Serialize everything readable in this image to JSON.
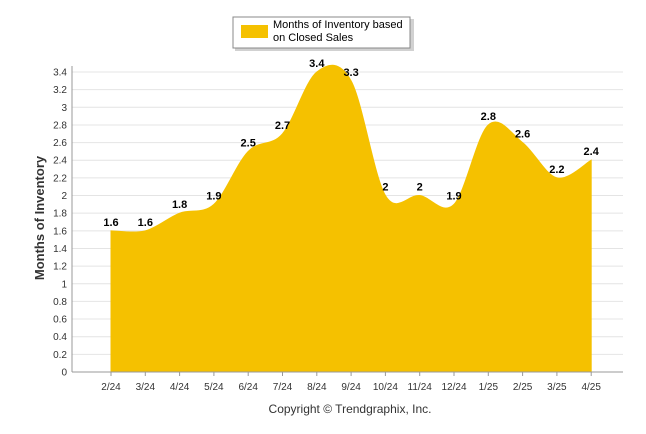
{
  "chart_data": {
    "type": "area",
    "ylabel": "Months of Inventory",
    "xlabel": "",
    "ylim": [
      0,
      3.4
    ],
    "y_ticks": [
      0,
      0.2,
      0.4,
      0.6,
      0.8,
      1,
      1.2,
      1.4,
      1.6,
      1.8,
      2,
      2.2,
      2.4,
      2.6,
      2.8,
      3,
      3.2,
      3.4
    ],
    "categories": [
      "2/24",
      "3/24",
      "4/24",
      "5/24",
      "6/24",
      "7/24",
      "8/24",
      "9/24",
      "10/24",
      "11/24",
      "12/24",
      "1/25",
      "2/25",
      "3/25",
      "4/25"
    ],
    "series": [
      {
        "name": "Months of Inventory based on Closed Sales",
        "values": [
          1.6,
          1.6,
          1.8,
          1.9,
          2.5,
          2.7,
          3.4,
          3.3,
          2,
          2,
          1.9,
          2.8,
          2.6,
          2.2,
          2.4
        ],
        "color": "#f5c100"
      }
    ],
    "legend_lines": [
      "Months of Inventory based",
      "on Closed Sales"
    ],
    "legend_position": "top-center",
    "grid": true,
    "credit": "Copyright © Trendgraphix, Inc."
  }
}
